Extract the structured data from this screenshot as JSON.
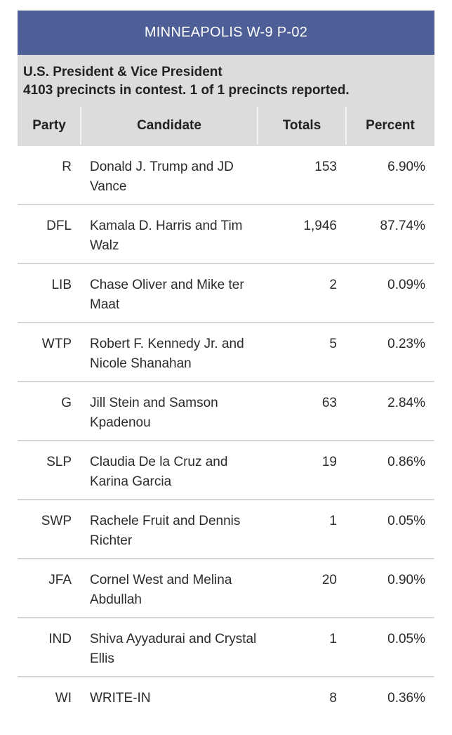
{
  "banner": {
    "title": "MINNEAPOLIS W-9 P-02"
  },
  "contest": {
    "name": "U.S. President & Vice President",
    "status": "4103 precincts in contest. 1 of 1 precincts reported."
  },
  "table": {
    "headers": {
      "party": "Party",
      "candidate": "Candidate",
      "totals": "Totals",
      "percent": "Percent"
    },
    "rows": [
      {
        "party": "R",
        "candidate": "Donald J. Trump and JD Vance",
        "totals": "153",
        "percent": "6.90%"
      },
      {
        "party": "DFL",
        "candidate": "Kamala D. Harris and Tim Walz",
        "totals": "1,946",
        "percent": "87.74%"
      },
      {
        "party": "LIB",
        "candidate": "Chase Oliver and Mike ter Maat",
        "totals": "2",
        "percent": "0.09%"
      },
      {
        "party": "WTP",
        "candidate": "Robert F. Kennedy Jr. and Nicole Shanahan",
        "totals": "5",
        "percent": "0.23%"
      },
      {
        "party": "G",
        "candidate": "Jill Stein and Samson Kpadenou",
        "totals": "63",
        "percent": "2.84%"
      },
      {
        "party": "SLP",
        "candidate": "Claudia De la Cruz and Karina Garcia",
        "totals": "19",
        "percent": "0.86%"
      },
      {
        "party": "SWP",
        "candidate": "Rachele Fruit and Dennis Richter",
        "totals": "1",
        "percent": "0.05%"
      },
      {
        "party": "JFA",
        "candidate": "Cornel West and Melina Abdullah",
        "totals": "20",
        "percent": "0.90%"
      },
      {
        "party": "IND",
        "candidate": "Shiva Ayyadurai and Crystal Ellis",
        "totals": "1",
        "percent": "0.05%"
      },
      {
        "party": "WI",
        "candidate": "WRITE-IN",
        "totals": "8",
        "percent": "0.36%"
      }
    ]
  }
}
